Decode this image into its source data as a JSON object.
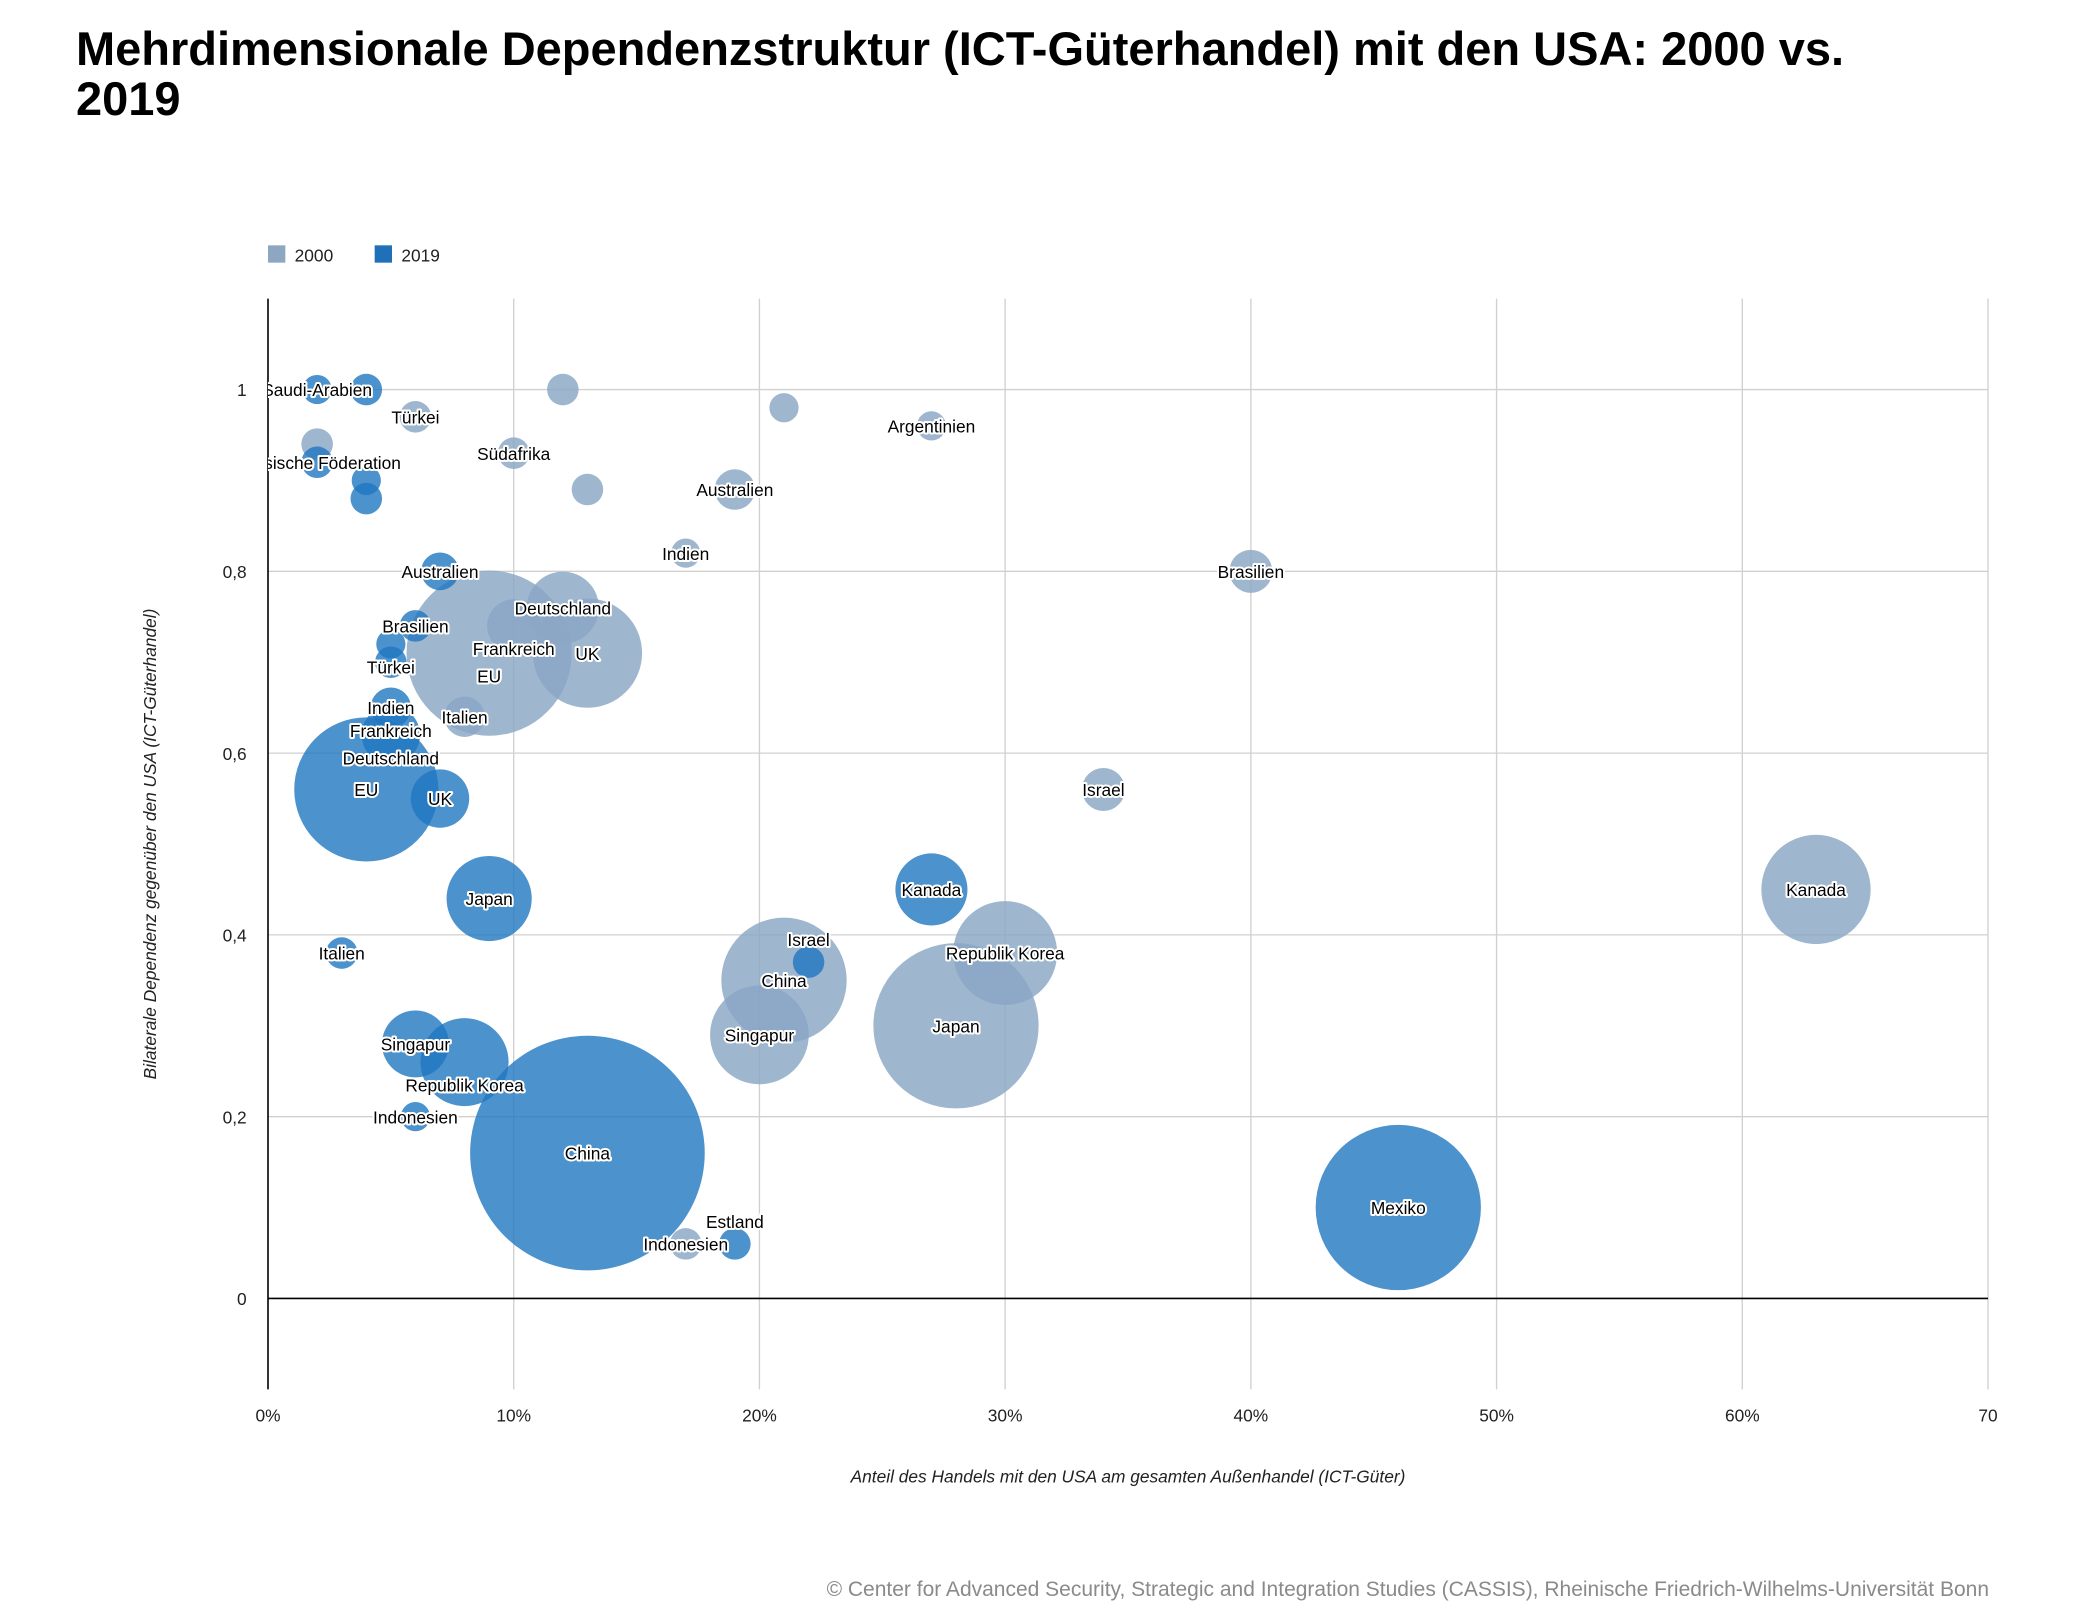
{
  "title": "Mehrdimensionale Dependenzstruktur (ICT-Güterhandel) mit den USA: 2000 vs. 2019",
  "footer": "© Center for Advanced Security, Strategic and Integration Studies (CASSIS), Rheinische Friedrich-Wilhelms-Universität Bonn",
  "chart_data": {
    "type": "bubble",
    "xlabel": "Anteil des Handels mit den USA am gesamten Außenhandel (ICT-Güter)",
    "ylabel": "Bilaterale Dependenz gegenüber den USA (ICT-Güterhandel)",
    "xlim": [
      0,
      70
    ],
    "ylim": [
      -0.1,
      1.1
    ],
    "xticks": [
      "0%",
      "10%",
      "20%",
      "30%",
      "40%",
      "50%",
      "60%",
      "70"
    ],
    "xtick_values": [
      0,
      10,
      20,
      30,
      40,
      50,
      60,
      70
    ],
    "yticks": [
      "0",
      "0,2",
      "0,4",
      "0,6",
      "0,8",
      "1"
    ],
    "ytick_values": [
      0,
      0.2,
      0.4,
      0.6,
      0.8,
      1
    ],
    "grid": true,
    "legend_position": "top-left",
    "series": [
      {
        "name": "2000",
        "color": "#8aa6c4",
        "points": [
          {
            "label": "",
            "x": 12,
            "y": 1.0,
            "size": 1.4
          },
          {
            "label": "",
            "x": 21,
            "y": 0.98,
            "size": 1.2
          },
          {
            "label": "Türkei",
            "x": 6,
            "y": 0.97,
            "size": 1.4
          },
          {
            "label": "",
            "x": 2,
            "y": 0.94,
            "size": 1.4
          },
          {
            "label": "Südafrika",
            "x": 10,
            "y": 0.93,
            "size": 1.4
          },
          {
            "label": "",
            "x": 13,
            "y": 0.89,
            "size": 1.4
          },
          {
            "label": "Australien",
            "x": 19,
            "y": 0.89,
            "size": 2.3
          },
          {
            "label": "Argentinien",
            "x": 27,
            "y": 0.96,
            "size": 1.2
          },
          {
            "label": "Indien",
            "x": 17,
            "y": 0.82,
            "size": 1.2
          },
          {
            "label": "Brasilien",
            "x": 40,
            "y": 0.8,
            "size": 2.6
          },
          {
            "label": "Deutschland",
            "x": 12,
            "y": 0.76,
            "size": 7.3
          },
          {
            "label": "Frankreich",
            "x": 10,
            "y": 0.74,
            "size": 4.0
          },
          {
            "label": "EU",
            "x": 9,
            "y": 0.71,
            "size": 38.4
          },
          {
            "label": "UK",
            "x": 13,
            "y": 0.71,
            "size": 16.8
          },
          {
            "label": "Italien",
            "x": 8,
            "y": 0.64,
            "size": 2.3
          },
          {
            "label": "Israel",
            "x": 34,
            "y": 0.56,
            "size": 2.6
          },
          {
            "label": "Kanada",
            "x": 63,
            "y": 0.45,
            "size": 16.8
          },
          {
            "label": "Republik Korea",
            "x": 30,
            "y": 0.38,
            "size": 15.2
          },
          {
            "label": "China",
            "x": 21,
            "y": 0.35,
            "size": 22.1
          },
          {
            "label": "Singapur",
            "x": 20,
            "y": 0.29,
            "size": 13.7
          },
          {
            "label": "Japan",
            "x": 28,
            "y": 0.3,
            "size": 38.4
          },
          {
            "label": "Indonesien",
            "x": 17,
            "y": 0.06,
            "size": 1.4
          }
        ]
      },
      {
        "name": "2019",
        "color": "#1f77c0",
        "points": [
          {
            "label": "Saudi-Arabien",
            "x": 2,
            "y": 1.0,
            "size": 1.2
          },
          {
            "label": "",
            "x": 4,
            "y": 1.0,
            "size": 1.4
          },
          {
            "label": "Russische Föderation",
            "x": 2,
            "y": 0.92,
            "size": 1.4
          },
          {
            "label": "",
            "x": 4,
            "y": 0.9,
            "size": 1.2
          },
          {
            "label": "",
            "x": 4,
            "y": 0.88,
            "size": 1.4
          },
          {
            "label": "Australien",
            "x": 7,
            "y": 0.8,
            "size": 2.0
          },
          {
            "label": "Brasilien",
            "x": 6,
            "y": 0.74,
            "size": 1.4
          },
          {
            "label": "Türkei",
            "x": 5,
            "y": 0.72,
            "size": 1.2
          },
          {
            "label": "Indien",
            "x": 5,
            "y": 0.7,
            "size": 1.4
          },
          {
            "label": "Frankreich",
            "x": 5,
            "y": 0.65,
            "size": 2.3
          },
          {
            "label": "Deutschland",
            "x": 5,
            "y": 0.62,
            "size": 4.8
          },
          {
            "label": "EU",
            "x": 4,
            "y": 0.56,
            "size": 29.2
          },
          {
            "label": "UK",
            "x": 7,
            "y": 0.55,
            "size": 4.8
          },
          {
            "label": "Japan",
            "x": 9,
            "y": 0.44,
            "size": 10.2
          },
          {
            "label": "Kanada",
            "x": 27,
            "y": 0.45,
            "size": 7.3
          },
          {
            "label": "Italien",
            "x": 3,
            "y": 0.38,
            "size": 1.4
          },
          {
            "label": "Israel",
            "x": 22,
            "y": 0.37,
            "size": 1.4
          },
          {
            "label": "Singapur",
            "x": 6,
            "y": 0.28,
            "size": 6.3
          },
          {
            "label": "Republik Korea",
            "x": 8,
            "y": 0.26,
            "size": 10.9
          },
          {
            "label": "Indonesien",
            "x": 6,
            "y": 0.2,
            "size": 1.2
          },
          {
            "label": "China",
            "x": 13,
            "y": 0.16,
            "size": 77.4
          },
          {
            "label": "Estland",
            "x": 19,
            "y": 0.06,
            "size": 1.4
          },
          {
            "label": "Mexiko",
            "x": 46,
            "y": 0.1,
            "size": 38.4
          }
        ]
      }
    ]
  }
}
